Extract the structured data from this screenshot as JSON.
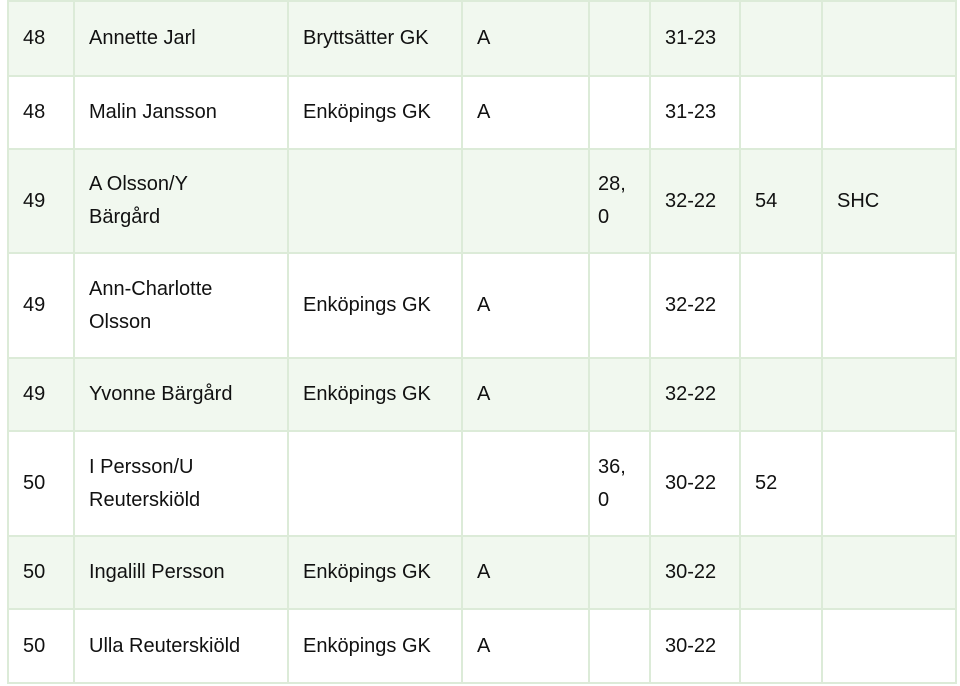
{
  "table": {
    "rows": [
      [
        "48",
        "Annette Jarl",
        "Bryttsätter GK",
        "A",
        null,
        "31-23",
        null,
        null
      ],
      [
        "48",
        "Malin Jansson",
        "Enköpings GK",
        "A",
        null,
        "31-23",
        null,
        null
      ],
      [
        "49",
        "A Olsson/Y\nBärgård",
        null,
        null,
        "28,\n0",
        "32-22",
        "54",
        "SHC"
      ],
      [
        "49",
        "Ann-Charlotte\nOlsson",
        "Enköpings GK",
        "A",
        null,
        "32-22",
        null,
        null
      ],
      [
        "49",
        "Yvonne Bärgård",
        "Enköpings GK",
        "A",
        null,
        "32-22",
        null,
        null
      ],
      [
        "50",
        "I Persson/U\nReuterskiöld",
        null,
        null,
        "36,\n0",
        "30-22",
        "52",
        null
      ],
      [
        "50",
        "Ingalill Persson",
        "Enköpings GK",
        "A",
        null,
        "30-22",
        null,
        null
      ],
      [
        "50",
        "Ulla Reuterskiöld",
        "Enköpings GK",
        "A",
        null,
        "30-22",
        null,
        null
      ]
    ]
  }
}
